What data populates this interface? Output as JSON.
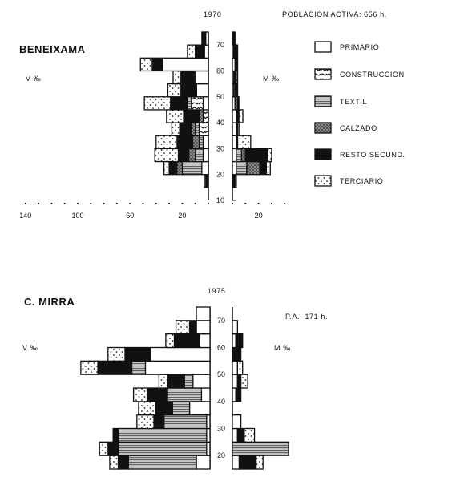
{
  "header": {
    "population_label": "POBLACION ACTIVA: 656 h."
  },
  "legend": {
    "items": [
      {
        "key": "primario",
        "label": "PRIMARIO",
        "icon": "empty-box-icon"
      },
      {
        "key": "construccion",
        "label": "CONSTRUCCION",
        "icon": "wave-hatch-box-icon"
      },
      {
        "key": "textil",
        "label": "TEXTIL",
        "icon": "horizontal-lines-box-icon"
      },
      {
        "key": "calzado",
        "label": "CALZADO",
        "icon": "crosshatch-box-icon"
      },
      {
        "key": "resto",
        "label": "RESTO SECUND.",
        "icon": "black-box-icon"
      },
      {
        "key": "terciario",
        "label": "TERCIARIO",
        "icon": "dotted-box-icon"
      }
    ]
  },
  "chart_data": [
    {
      "type": "population-pyramid",
      "title": "BENEIXAMA",
      "year": "1970",
      "left_label": "V ‰",
      "right_label": "M ‰",
      "y_ticks": [
        "10",
        "20",
        "30",
        "40",
        "50",
        "60",
        "70"
      ],
      "x_ticks_left": [
        "140",
        "100",
        "60",
        "20"
      ],
      "x_ticks_right": [
        "20"
      ],
      "series_order": [
        "primario",
        "construccion",
        "textil",
        "calzado",
        "resto",
        "terciario"
      ],
      "age_groups": [
        {
          "age": "15",
          "male": {
            "resto": 2,
            "terciario": 1
          },
          "female": {
            "resto": 2,
            "terciario": 1
          }
        },
        {
          "age": "20",
          "male": {
            "primario": 5,
            "textil": 15,
            "calzado": 4,
            "resto": 6,
            "terciario": 4
          },
          "female": {
            "primario": 3,
            "textil": 8,
            "calzado": 10,
            "resto": 5,
            "terciario": 3
          }
        },
        {
          "age": "25",
          "male": {
            "primario": 4,
            "textil": 6,
            "calzado": 5,
            "resto": 8,
            "terciario": 18
          },
          "female": {
            "primario": 3,
            "textil": 4,
            "calzado": 3,
            "resto": 17,
            "terciario": 3
          }
        },
        {
          "age": "30",
          "male": {
            "primario": 4,
            "textil": 3,
            "calzado": 5,
            "resto": 12,
            "terciario": 16
          },
          "female": {
            "primario": 3,
            "resto": 1,
            "terciario": 10
          }
        },
        {
          "age": "35",
          "male": {
            "construccion": 7,
            "textil": 3,
            "calzado": 3,
            "resto": 9,
            "terciario": 6
          },
          "female": {
            "primario": 3,
            "resto": 1,
            "terciario": 1
          }
        },
        {
          "age": "40",
          "male": {
            "construccion": 4,
            "calzado": 3,
            "resto": 12,
            "terciario": 13
          },
          "female": {
            "primario": 3,
            "resto": 2,
            "terciario": 3
          }
        },
        {
          "age": "45",
          "male": {
            "primario": 4,
            "construccion": 9,
            "textil": 3,
            "resto": 13,
            "terciario": 20
          },
          "female": {
            "primario": 2,
            "calzado": 2,
            "resto": 1
          }
        },
        {
          "age": "50",
          "male": {
            "primario": 9,
            "resto": 12,
            "terciario": 10
          },
          "female": {
            "primario": 1,
            "textil": 1,
            "resto": 2
          }
        },
        {
          "age": "55",
          "male": {
            "primario": 10,
            "calzado": 1,
            "resto": 10,
            "terciario": 6
          },
          "female": {
            "primario": 1,
            "resto": 2,
            "terciario": 1
          }
        },
        {
          "age": "60",
          "male": {
            "primario": 35,
            "resto": 8,
            "terciario": 9
          },
          "female": {
            "primario": 2,
            "resto": 2
          }
        },
        {
          "age": "65",
          "male": {
            "primario": 3,
            "resto": 7,
            "terciario": 6
          },
          "female": {
            "primario": 1,
            "resto": 3
          }
        },
        {
          "age": "70",
          "male": {
            "primario": 2,
            "resto": 3
          },
          "female": {
            "resto": 2
          }
        }
      ]
    },
    {
      "type": "population-pyramid",
      "title": "C. MIRRA",
      "year": "1975",
      "population_label": "P.A.: 171 h.",
      "left_label": "V ‰",
      "right_label": "M ‰",
      "y_ticks": [
        "20",
        "30",
        "40",
        "50",
        "60",
        "70"
      ],
      "series_order": [
        "primario",
        "construccion",
        "textil",
        "calzado",
        "resto",
        "terciario"
      ],
      "age_groups": [
        {
          "age": "15",
          "male": {
            "primario": 8,
            "textil": 40,
            "resto": 6,
            "terciario": 5
          },
          "female": {
            "primario": 4,
            "resto": 10,
            "terciario": 4
          }
        },
        {
          "age": "20",
          "male": {
            "primario": 2,
            "textil": 52,
            "resto": 6,
            "terciario": 5
          },
          "female": {
            "textil": 33
          }
        },
        {
          "age": "25",
          "male": {
            "primario": 2,
            "textil": 52,
            "resto": 3
          },
          "female": {
            "primario": 3,
            "resto": 4,
            "terciario": 6
          }
        },
        {
          "age": "30",
          "male": {
            "primario": 2,
            "textil": 25,
            "resto": 6,
            "terciario": 10
          },
          "female": {
            "primario": 5
          }
        },
        {
          "age": "35",
          "male": {
            "primario": 12,
            "textil": 10,
            "resto": 10,
            "terciario": 10
          },
          "female": {}
        },
        {
          "age": "40",
          "male": {
            "primario": 5,
            "textil": 20,
            "resto": 12,
            "terciario": 8
          },
          "female": {
            "primario": 2,
            "resto": 3
          }
        },
        {
          "age": "45",
          "male": {
            "primario": 10,
            "textil": 5,
            "resto": 10,
            "terciario": 5
          },
          "female": {
            "primario": 3,
            "resto": 2,
            "terciario": 4
          }
        },
        {
          "age": "50",
          "male": {
            "primario": 38,
            "textil": 8,
            "resto": 20,
            "terciario": 10
          },
          "female": {
            "primario": 3,
            "terciario": 3
          }
        },
        {
          "age": "55",
          "male": {
            "primario": 35,
            "resto": 15,
            "terciario": 10
          },
          "female": {
            "resto": 5
          }
        },
        {
          "age": "60",
          "male": {
            "primario": 6,
            "resto": 15,
            "terciario": 5
          },
          "female": {
            "primario": 2,
            "resto": 4
          }
        },
        {
          "age": "65",
          "male": {
            "primario": 8,
            "resto": 4,
            "terciario": 8
          },
          "female": {
            "primario": 3
          }
        },
        {
          "age": "70",
          "male": {
            "primario": 8
          },
          "female": {}
        }
      ]
    }
  ]
}
